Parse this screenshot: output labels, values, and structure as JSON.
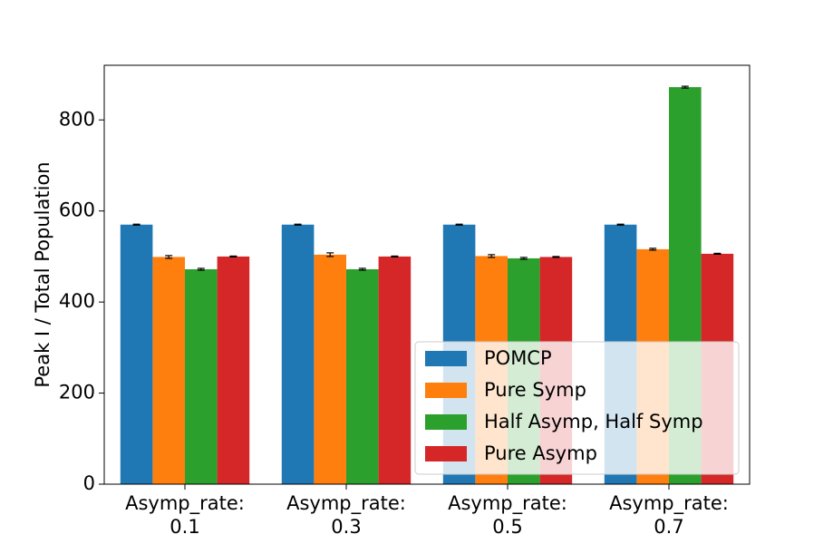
{
  "chart_data": {
    "type": "bar",
    "title": "",
    "xlabel": "",
    "ylabel": "Peak I / Total Population",
    "ylim": [
      0,
      920
    ],
    "yticks": [
      "0",
      "200",
      "400",
      "600",
      "800"
    ],
    "categories": [
      [
        "Asymp_rate:",
        "0.1"
      ],
      [
        "Asymp_rate:",
        "0.3"
      ],
      [
        "Asymp_rate:",
        "0.5"
      ],
      [
        "Asymp_rate:",
        "0.7"
      ]
    ],
    "series": [
      {
        "name": "POMCP",
        "color": "#1f77b4",
        "values": [
          570,
          570,
          570,
          570
        ],
        "errors": [
          1,
          1,
          1,
          1
        ]
      },
      {
        "name": "Pure Symp",
        "color": "#ff7f0e",
        "values": [
          499,
          504,
          501,
          516
        ],
        "errors": [
          3,
          4,
          3,
          2
        ]
      },
      {
        "name": "Half Asymp, Half Symp",
        "color": "#2ca02c",
        "values": [
          472,
          472,
          496,
          872
        ],
        "errors": [
          2,
          2,
          2,
          2
        ]
      },
      {
        "name": "Pure Asymp",
        "color": "#d62728",
        "values": [
          500,
          500,
          499,
          506
        ],
        "errors": [
          1,
          1,
          1,
          1
        ]
      }
    ],
    "grid": false,
    "legend_position": "lower-right",
    "error_bars": true
  }
}
